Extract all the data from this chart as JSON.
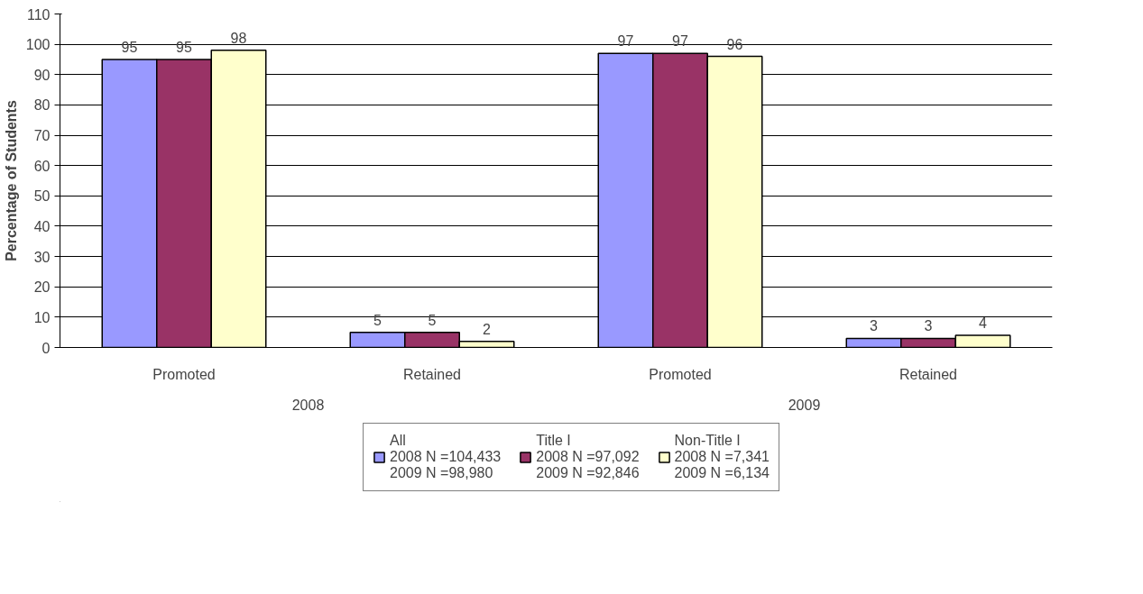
{
  "chart_data": {
    "type": "bar",
    "ylabel": "Percentage of Students",
    "categories": [
      "Promoted",
      "Retained",
      "Promoted",
      "Retained"
    ],
    "annotations": [
      "2008",
      "2009"
    ],
    "series": [
      {
        "name": "All\n2008 N =104,433\n2009 N =98,980",
        "color": "#9999ff",
        "values": [
          95,
          5,
          97,
          3
        ]
      },
      {
        "name": "Title I\n2008 N =97,092\n2009 N =92,846",
        "color": "#993366",
        "values": [
          95,
          5,
          97,
          3
        ]
      },
      {
        "name": "Non-Title I\n2008 N =7,341\n2009 N =6,134",
        "color": "#ffffcc",
        "values": [
          98,
          2,
          96,
          4
        ]
      }
    ],
    "data_labels": true,
    "ylim": [
      0,
      110
    ],
    "yticks": [
      0,
      10,
      20,
      30,
      40,
      50,
      60,
      70,
      80,
      90,
      100,
      110
    ],
    "grid": "y",
    "legend": "bottom"
  }
}
